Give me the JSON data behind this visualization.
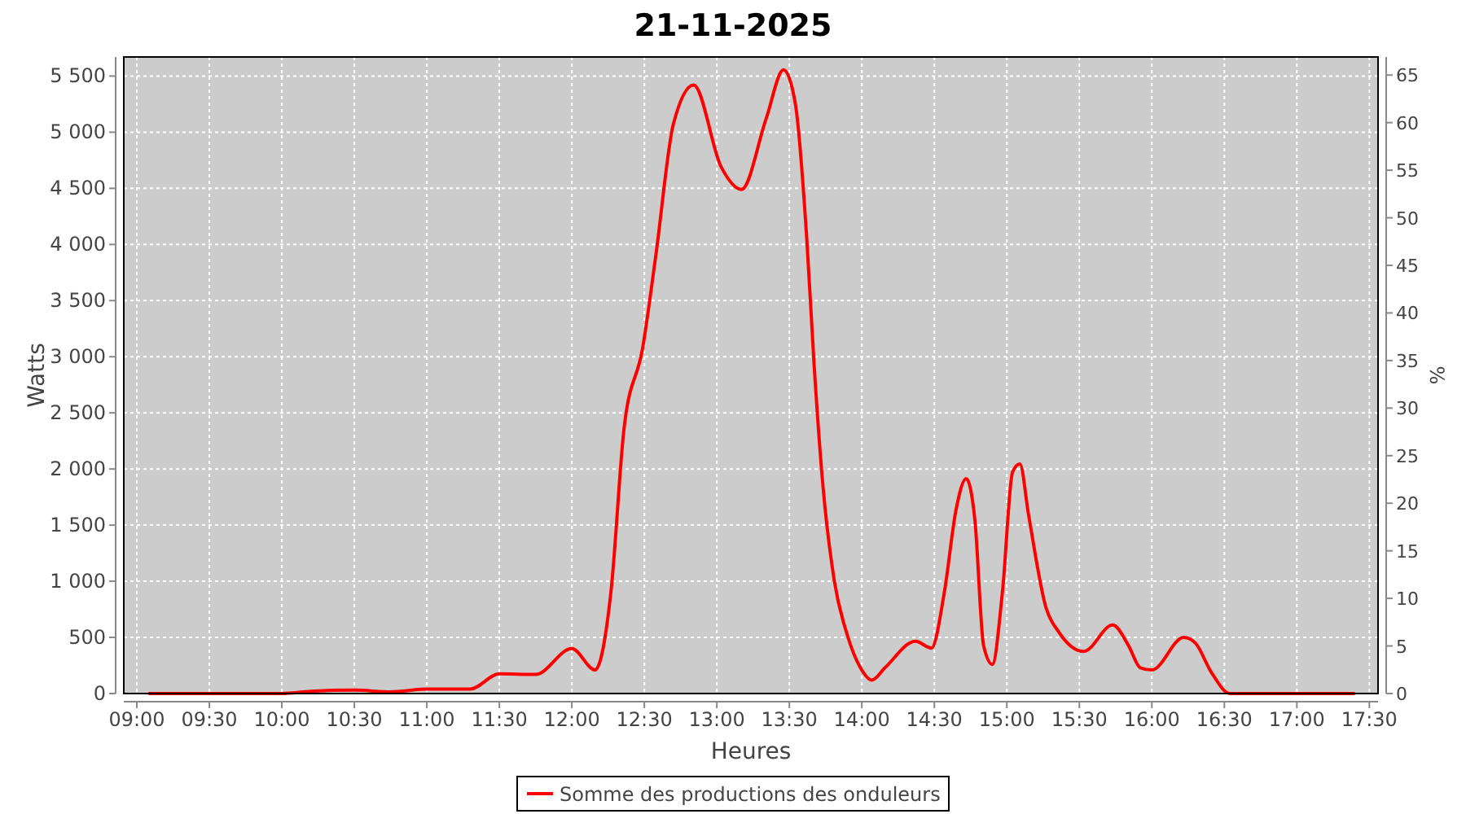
{
  "chart_data": {
    "type": "line",
    "title": "21-11-2025",
    "xlabel": "Heures",
    "ylabel": "Watts",
    "y2label": "%",
    "xlim": [
      8.91,
      17.56
    ],
    "xticks": [
      {
        "value": 9,
        "label": "09:00"
      },
      {
        "value": 9.5,
        "label": "09:30"
      },
      {
        "value": 10,
        "label": "10:00"
      },
      {
        "value": 10.5,
        "label": "10:30"
      },
      {
        "value": 11,
        "label": "11:00"
      },
      {
        "value": 11.5,
        "label": "11:30"
      },
      {
        "value": 12,
        "label": "12:00"
      },
      {
        "value": 12.5,
        "label": "12:30"
      },
      {
        "value": 13,
        "label": "13:00"
      },
      {
        "value": 13.5,
        "label": "13:30"
      },
      {
        "value": 14,
        "label": "14:00"
      },
      {
        "value": 14.5,
        "label": "14:30"
      },
      {
        "value": 15,
        "label": "15:00"
      },
      {
        "value": 15.5,
        "label": "15:30"
      },
      {
        "value": 16,
        "label": "16:00"
      },
      {
        "value": 16.5,
        "label": "16:30"
      },
      {
        "value": 17,
        "label": "17:00"
      },
      {
        "value": 17.5,
        "label": "17:30"
      }
    ],
    "ylim": [
      0,
      5670
    ],
    "yticks": [
      0,
      500,
      {
        "value": 1000,
        "label": "1 000"
      },
      {
        "value": 1500,
        "label": "1 500"
      },
      {
        "value": 2000,
        "label": "2 000"
      },
      {
        "value": 2500,
        "label": "2 500"
      },
      {
        "value": 3000,
        "label": "3 000"
      },
      {
        "value": 3500,
        "label": "3 500"
      },
      {
        "value": 4000,
        "label": "4 000"
      },
      {
        "value": 4500,
        "label": "4 500"
      },
      {
        "value": 5000,
        "label": "5 000"
      },
      {
        "value": 5500,
        "label": "5 500"
      }
    ],
    "y2lim": [
      0,
      66.9
    ],
    "y2ticks": [
      0,
      5,
      10,
      15,
      20,
      25,
      30,
      35,
      40,
      45,
      50,
      55,
      60,
      65
    ],
    "grid": true,
    "legend": "bottom",
    "marker": "none",
    "line_style": "solid",
    "series": [
      {
        "name": "Somme des productions des onduleurs",
        "color": "#ff0000",
        "x": [
          9.08,
          10.0,
          10.2,
          10.5,
          10.75,
          11.0,
          11.3,
          11.5,
          11.75,
          12.0,
          12.16,
          12.27,
          12.36,
          12.49,
          12.58,
          12.7,
          12.84,
          13.03,
          13.17,
          13.34,
          13.46,
          13.54,
          13.62,
          13.67,
          13.73,
          13.81,
          13.9,
          13.99,
          14.07,
          14.16,
          14.37,
          14.48,
          14.57,
          14.65,
          14.72,
          14.78,
          14.84,
          14.9,
          14.97,
          15.04,
          15.09,
          15.15,
          15.27,
          15.36,
          15.53,
          15.73,
          15.84,
          15.92,
          16.0,
          16.22,
          16.3,
          16.41,
          16.54,
          17.4
        ],
        "values": [
          0,
          0,
          20,
          30,
          15,
          40,
          40,
          175,
          170,
          400,
          210,
          910,
          2360,
          3090,
          3910,
          5070,
          5420,
          4690,
          4490,
          5120,
          5555,
          5265,
          4055,
          2945,
          1875,
          1005,
          520,
          230,
          120,
          230,
          465,
          405,
          910,
          1640,
          1915,
          1540,
          425,
          260,
          910,
          1975,
          2045,
          1590,
          765,
          545,
          375,
          610,
          425,
          230,
          210,
          500,
          450,
          190,
          0,
          0
        ]
      }
    ]
  }
}
